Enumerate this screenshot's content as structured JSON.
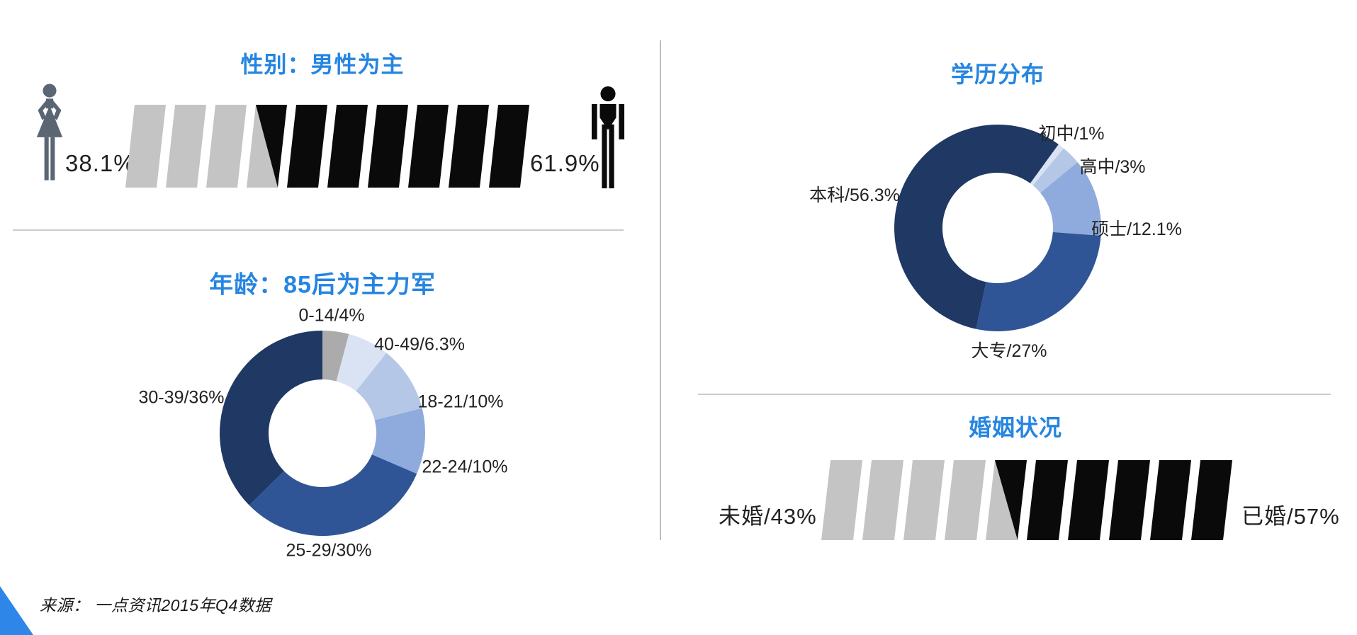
{
  "page": {
    "background": "#FFFFFF"
  },
  "colors": {
    "accent_title": "#2585E1",
    "divider": "#CCCCCC",
    "bar_gray": "#C4C4C4",
    "bar_black": "#0A0A0A",
    "female_icon": "#5A6673",
    "male_icon": "#0A0A0A",
    "corner_triangle": "#2E86E8",
    "label_text": "#1F1F1F"
  },
  "footer": {
    "source_text": "来源： 一点资讯2015年Q4数据"
  },
  "chart_data": [
    {
      "id": "gender",
      "type": "pictorial-bar",
      "title": "性别：男性为主",
      "segment_count": 10,
      "series": [
        {
          "name": "女性",
          "value": 38.1,
          "color": "#C4C4C4"
        },
        {
          "name": "男性",
          "value": 61.9,
          "color": "#0A0A0A"
        }
      ],
      "left_label": "38.1%",
      "right_label": "61.9%"
    },
    {
      "id": "age",
      "type": "donut",
      "title": "年龄：85后为主力军",
      "start_offset_deg": 0,
      "segments": [
        {
          "name": "0-14",
          "value": 4,
          "label": "0-14/4%",
          "color": "#ACABAB"
        },
        {
          "name": "40-49",
          "value": 6.3,
          "label": "40-49/6.3%",
          "color": "#DAE3F3"
        },
        {
          "name": "18-21",
          "value": 10,
          "label": "18-21/10%",
          "color": "#B4C7E7"
        },
        {
          "name": "22-24",
          "value": 10,
          "label": "22-24/10%",
          "color": "#8FAADC"
        },
        {
          "name": "25-29",
          "value": 30,
          "label": "25-29/30%",
          "color": "#2F5597"
        },
        {
          "name": "30-39",
          "value": 36,
          "label": "30-39/36%",
          "color": "#1F3864"
        }
      ]
    },
    {
      "id": "education",
      "type": "donut",
      "title": "学历分布",
      "start_offset_deg": 36,
      "segments": [
        {
          "name": "初中",
          "value": 1,
          "label": "初中/1%",
          "color": "#DAE3F3"
        },
        {
          "name": "高中",
          "value": 3,
          "label": "高中/3%",
          "color": "#B4C7E7"
        },
        {
          "name": "硕士",
          "value": 12.1,
          "label": "硕士/12.1%",
          "color": "#8FAADC"
        },
        {
          "name": "大专",
          "value": 27,
          "label": "大专/27%",
          "color": "#2F5597"
        },
        {
          "name": "本科",
          "value": 56.3,
          "label": "本科/56.3%",
          "color": "#1F3864"
        }
      ]
    },
    {
      "id": "marital",
      "type": "pictorial-bar",
      "title": "婚姻状况",
      "segment_count": 10,
      "series": [
        {
          "name": "未婚",
          "value": 43,
          "color": "#C4C4C4"
        },
        {
          "name": "已婚",
          "value": 57,
          "color": "#0A0A0A"
        }
      ],
      "left_label": "未婚/43%",
      "right_label": "已婚/57%"
    }
  ]
}
